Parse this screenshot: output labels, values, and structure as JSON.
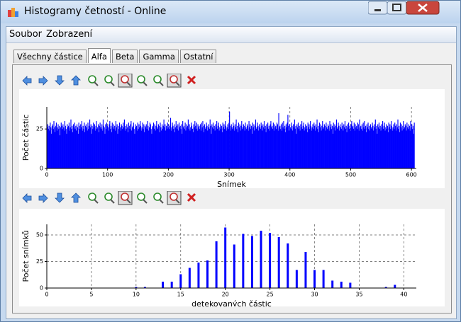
{
  "window": {
    "title": "Histogramy četností - Online"
  },
  "menu": [
    "Soubor",
    "Zobrazení"
  ],
  "tabs": [
    "Všechny částice",
    "Alfa",
    "Beta",
    "Gamma",
    "Ostatní"
  ],
  "chart_data": [
    {
      "type": "bar",
      "y_label": "Počet částic",
      "x_label": "Snímek",
      "color": "#0000ff",
      "grid": true,
      "xlim": [
        0,
        608
      ],
      "ylim": [
        0,
        39
      ],
      "xticks": [
        0,
        100,
        200,
        300,
        400,
        500,
        600
      ],
      "yticks": [
        0,
        25
      ],
      "x": [
        0,
        1,
        2,
        3,
        4,
        5,
        6,
        7,
        8,
        9,
        10,
        11,
        12,
        13,
        14,
        15,
        16,
        17,
        18,
        19,
        20,
        21,
        22,
        23,
        24,
        25,
        26,
        27,
        28,
        29,
        30,
        31,
        32,
        33,
        34,
        35,
        36,
        37,
        38,
        39,
        40,
        41,
        42,
        43,
        44,
        45,
        46,
        47,
        48,
        49,
        50,
        51,
        52,
        53,
        54,
        55,
        56,
        57,
        58,
        59,
        60,
        61,
        62,
        63,
        64,
        65,
        66,
        67,
        68,
        69,
        70,
        71,
        72,
        73,
        74,
        75,
        76,
        77,
        78,
        79,
        80,
        81,
        82,
        83,
        84,
        85,
        86,
        87,
        88,
        89,
        90,
        91,
        92,
        93,
        94,
        95,
        96,
        97,
        98,
        99,
        100,
        101,
        102,
        103,
        104,
        105,
        106,
        107,
        108,
        109,
        110,
        111,
        112,
        113,
        114,
        115,
        116,
        117,
        118,
        119,
        120,
        121,
        122,
        123,
        124,
        125,
        126,
        127,
        128,
        129,
        130,
        131,
        132,
        133,
        134,
        135,
        136,
        137,
        138,
        139,
        140,
        141,
        142,
        143,
        144,
        145,
        146,
        147,
        148,
        149,
        150,
        151,
        152,
        153,
        154,
        155,
        156,
        157,
        158,
        159,
        160,
        161,
        162,
        163,
        164,
        165,
        166,
        167,
        168,
        169,
        170,
        171,
        172,
        173,
        174,
        175,
        176,
        177,
        178,
        179,
        180,
        181,
        182,
        183,
        184,
        185,
        186,
        187,
        188,
        189,
        190,
        191,
        192,
        193,
        194,
        195,
        196,
        197,
        198,
        199,
        200,
        201,
        202,
        203,
        204,
        205,
        206,
        207,
        208,
        209,
        210,
        211,
        212,
        213,
        214,
        215,
        216,
        217,
        218,
        219,
        220,
        221,
        222,
        223,
        224,
        225,
        226,
        227,
        228,
        229,
        230,
        231,
        232,
        233,
        234,
        235,
        236,
        237,
        238,
        239,
        240,
        241,
        242,
        243,
        244,
        245,
        246,
        247,
        248,
        249,
        250,
        251,
        252,
        253,
        254,
        255,
        256,
        257,
        258,
        259,
        260,
        261,
        262,
        263,
        264,
        265,
        266,
        267,
        268,
        269,
        270,
        271,
        272,
        273,
        274,
        275,
        276,
        277,
        278,
        279,
        280,
        281,
        282,
        283,
        284,
        285,
        286,
        287,
        288,
        289,
        290,
        291,
        292,
        293,
        294,
        295,
        296,
        297,
        298,
        299,
        300,
        301,
        302,
        303,
        304,
        305,
        306,
        307,
        308,
        309,
        310,
        311,
        312,
        313,
        314,
        315,
        316,
        317,
        318,
        319,
        320,
        321,
        322,
        323,
        324,
        325,
        326,
        327,
        328,
        329,
        330,
        331,
        332,
        333,
        334,
        335,
        336,
        337,
        338,
        339,
        340,
        341,
        342,
        343,
        344,
        345,
        346,
        347,
        348,
        349,
        350,
        351,
        352,
        353,
        354,
        355,
        356,
        357,
        358,
        359,
        360,
        361,
        362,
        363,
        364,
        365,
        366,
        367,
        368,
        369,
        370,
        371,
        372,
        373,
        374,
        375,
        376,
        377,
        378,
        379,
        380,
        381,
        382,
        383,
        384,
        385,
        386,
        387,
        388,
        389,
        390,
        391,
        392,
        393,
        394,
        395,
        396,
        397,
        398,
        399,
        400,
        401,
        402,
        403,
        404,
        405,
        406,
        407,
        408,
        409,
        410,
        411,
        412,
        413,
        414,
        415,
        416,
        417,
        418,
        419,
        420,
        421,
        422,
        423,
        424,
        425,
        426,
        427,
        428,
        429,
        430,
        431,
        432,
        433,
        434,
        435,
        436,
        437,
        438,
        439,
        440,
        441,
        442,
        443,
        444,
        445,
        446,
        447,
        448,
        449,
        450,
        451,
        452,
        453,
        454,
        455,
        456,
        457,
        458,
        459,
        460,
        461,
        462,
        463,
        464,
        465,
        466,
        467,
        468,
        469,
        470,
        471,
        472,
        473,
        474,
        475,
        476,
        477,
        478,
        479,
        480,
        481,
        482,
        483,
        484,
        485,
        486,
        487,
        488,
        489,
        490,
        491,
        492,
        493,
        494,
        495,
        496,
        497,
        498,
        499,
        500,
        501,
        502,
        503,
        504,
        505,
        506,
        507,
        508,
        509,
        510,
        511,
        512,
        513,
        514,
        515,
        516,
        517,
        518,
        519,
        520,
        521,
        522,
        523,
        524,
        525,
        526,
        527,
        528,
        529,
        530,
        531,
        532,
        533,
        534,
        535,
        536,
        537,
        538,
        539,
        540,
        541,
        542,
        543,
        544,
        545,
        546,
        547,
        548,
        549,
        550,
        551,
        552,
        553,
        554,
        555,
        556,
        557,
        558,
        559,
        560,
        561,
        562,
        563,
        564,
        565,
        566,
        567,
        568,
        569,
        570,
        571,
        572,
        573,
        574,
        575,
        576,
        577,
        578,
        579,
        580,
        581,
        582,
        583,
        584,
        585,
        586,
        587,
        588,
        589,
        590,
        591,
        592,
        593,
        594,
        595,
        596,
        597,
        598,
        599,
        600,
        601,
        602,
        603,
        604
      ],
      "values": [
        26,
        28,
        25,
        27,
        24,
        29,
        26,
        22,
        27,
        28,
        25,
        30,
        26,
        23,
        27,
        29,
        24,
        26,
        28,
        25,
        27,
        21,
        26,
        29,
        27,
        25,
        28,
        26,
        24,
        30,
        27,
        25,
        22,
        28,
        26,
        27,
        29,
        24,
        26,
        31,
        25,
        27,
        23,
        28,
        26,
        29,
        25,
        27,
        24,
        28,
        26,
        22,
        29,
        27,
        25,
        28,
        26,
        30,
        24,
        27,
        25,
        29,
        23,
        27,
        28,
        26,
        24,
        29,
        25,
        27,
        31,
        26,
        28,
        22,
        27,
        25,
        29,
        26,
        28,
        24,
        27,
        30,
        25,
        26,
        28,
        23,
        27,
        29,
        26,
        25,
        28,
        24,
        31,
        27,
        26,
        22,
        28,
        25,
        29,
        27,
        26,
        24,
        28,
        30,
        25,
        27,
        23,
        29,
        26,
        28,
        25,
        27,
        24,
        30,
        26,
        28,
        22,
        27,
        25,
        29,
        26,
        24,
        28,
        27,
        25,
        29,
        26,
        31,
        24,
        27,
        25,
        28,
        26,
        23,
        29,
        27,
        25,
        28,
        30,
        24,
        26,
        27,
        29,
        25,
        22,
        28,
        26,
        27,
        24,
        29,
        25,
        28,
        26,
        30,
        27,
        24,
        26,
        29,
        25,
        28,
        23,
        27,
        26,
        28,
        25,
        30,
        27,
        24,
        26,
        29,
        28,
        25,
        22,
        27,
        26,
        29,
        25,
        28,
        24,
        27,
        30,
        26,
        25,
        28,
        27,
        23,
        29,
        26,
        24,
        28,
        25,
        27,
        31,
        26,
        28,
        24,
        27,
        25,
        29,
        26,
        28,
        25,
        27,
        32,
        24,
        26,
        29,
        27,
        25,
        28,
        23,
        26,
        30,
        27,
        25,
        28,
        24,
        29,
        26,
        27,
        25,
        28,
        22,
        30,
        26,
        27,
        25,
        29,
        24,
        28,
        26,
        27,
        31,
        25,
        28,
        24,
        26,
        29,
        27,
        25,
        23,
        28,
        26,
        30,
        27,
        25,
        29,
        24,
        28,
        26,
        27,
        25,
        28,
        24,
        29,
        26,
        30,
        27,
        23,
        28,
        25,
        26,
        29,
        27,
        24,
        28,
        26,
        25,
        31,
        27,
        22,
        28,
        26,
        29,
        25,
        27,
        24,
        28,
        26,
        30,
        25,
        27,
        29,
        24,
        26,
        28,
        25,
        27,
        23,
        29,
        26,
        28,
        25,
        30,
        27,
        24,
        26,
        28,
        25,
        29,
        36,
        27,
        24,
        28,
        26,
        25,
        29,
        27,
        24,
        28,
        26,
        31,
        25,
        27,
        23,
        29,
        26,
        28,
        24,
        27,
        30,
        25,
        26,
        28,
        27,
        24,
        29,
        26,
        25,
        28,
        27,
        24,
        30,
        26,
        28,
        25,
        27,
        22,
        29,
        26,
        28,
        24,
        27,
        31,
        25,
        26,
        29,
        27,
        24,
        28,
        26,
        25,
        29,
        27,
        24,
        28,
        26,
        30,
        25,
        27,
        23,
        28,
        26,
        29,
        25,
        27,
        24,
        28,
        30,
        26,
        27,
        25,
        29,
        24,
        28,
        26,
        27,
        25,
        29,
        28,
        24,
        35,
        26,
        27,
        25,
        28,
        24,
        29,
        26,
        30,
        25,
        27,
        23,
        28,
        26,
        29,
        34,
        27,
        24,
        28,
        26,
        25,
        29,
        27,
        24,
        28,
        26,
        31,
        25,
        27,
        22,
        28,
        26,
        29,
        25,
        27,
        24,
        28,
        26,
        30,
        25,
        27,
        29,
        24,
        26,
        28,
        25,
        27,
        23,
        29,
        26,
        28,
        25,
        30,
        27,
        24,
        26,
        28,
        25,
        29,
        27,
        24,
        28,
        26,
        31,
        25,
        27,
        23,
        29,
        26,
        28,
        24,
        27,
        30,
        25,
        26,
        28,
        27,
        24,
        29,
        26,
        25,
        28,
        27,
        24,
        30,
        26,
        28,
        25,
        27,
        22,
        29,
        26,
        28,
        24,
        27,
        31,
        25,
        26,
        29,
        27,
        24,
        28,
        26,
        25,
        29,
        27,
        24,
        28,
        26,
        30,
        25,
        27,
        23,
        28,
        26,
        29,
        25,
        27,
        24,
        28,
        30,
        26,
        27,
        25,
        29,
        24,
        28,
        26,
        27,
        25,
        29,
        28,
        24,
        31,
        26,
        27,
        25,
        28,
        24,
        29,
        26,
        30,
        25,
        27,
        23,
        28,
        26,
        29,
        25,
        27,
        24,
        28,
        26,
        25,
        29,
        27,
        24,
        28,
        26,
        31,
        25,
        27,
        22,
        28,
        26,
        29,
        25,
        27,
        24,
        28,
        26,
        30,
        25,
        27,
        29,
        24,
        26,
        28,
        25,
        27,
        23,
        29,
        26,
        28,
        25,
        30,
        27,
        24,
        26,
        28,
        25,
        29,
        27,
        24,
        28,
        26,
        31,
        25,
        27,
        23,
        29,
        26,
        28,
        24,
        27,
        30,
        25,
        26,
        28,
        27,
        24,
        29,
        26,
        25,
        28,
        27,
        24,
        30,
        26,
        28,
        25,
        27,
        22,
        29
      ]
    },
    {
      "type": "bar",
      "y_label": "Počet snímků",
      "x_label": "detekovaných částic",
      "color": "#0000ff",
      "grid": true,
      "xlim": [
        0,
        41.4
      ],
      "ylim": [
        0,
        60
      ],
      "xticks": [
        0,
        5,
        10,
        15,
        20,
        25,
        30,
        35,
        40
      ],
      "yticks": [
        0,
        25,
        50
      ],
      "x": [
        10,
        11,
        13,
        14,
        15,
        16,
        17,
        18,
        19,
        20,
        21,
        22,
        23,
        24,
        25,
        26,
        27,
        28,
        29,
        30,
        31,
        32,
        33,
        34,
        38,
        39
      ],
      "values": [
        1,
        1,
        6,
        6,
        13,
        19,
        24,
        26,
        44,
        57,
        41,
        51,
        49,
        54,
        52,
        48,
        42,
        17,
        34,
        17,
        17,
        7,
        6,
        5,
        1,
        3
      ]
    }
  ]
}
